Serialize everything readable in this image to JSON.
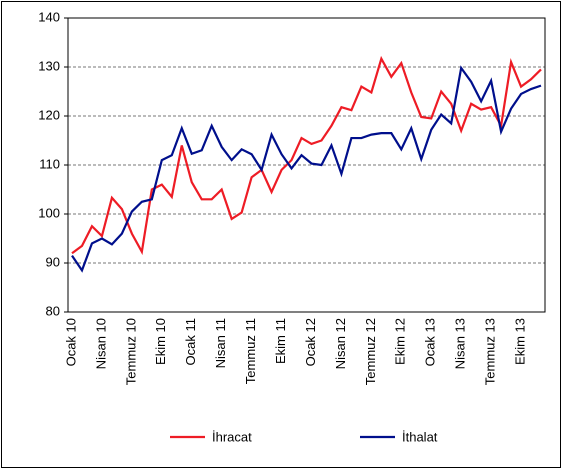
{
  "chart_data": {
    "type": "line",
    "categories": [
      "Ocak 10",
      null,
      null,
      "Nisan 10",
      null,
      null,
      "Temmuz 10",
      null,
      null,
      "Ekim 10",
      null,
      null,
      "Ocak 11",
      null,
      null,
      "Nisan 11",
      null,
      null,
      "Temmuz 11",
      null,
      null,
      "Ekim 11",
      null,
      null,
      "Ocak 12",
      null,
      null,
      "Nisan 12",
      null,
      null,
      "Temmuz 12",
      null,
      null,
      "Ekim 12",
      null,
      null,
      "Ocak 13",
      null,
      null,
      "Nisan 13",
      null,
      null,
      "Temmuz 13",
      null,
      null,
      "Ekim 13",
      null,
      null
    ],
    "series": [
      {
        "name": "İhracat",
        "color": "#ee1c25",
        "values": [
          92,
          93.5,
          97.5,
          95.5,
          103.3,
          101,
          96,
          92.3,
          105,
          106,
          103.5,
          114,
          106.5,
          103,
          103,
          105,
          99,
          100.3,
          107.5,
          109,
          104.5,
          109,
          111,
          115.5,
          114.3,
          115,
          118,
          121.8,
          121.2,
          126,
          124.8,
          131.7,
          128,
          130.8,
          124.8,
          119.8,
          119.5,
          125,
          122.5,
          117,
          122.5,
          121.3,
          121.8,
          118,
          131,
          126,
          127.5,
          129.5
        ]
      },
      {
        "name": "İthalat",
        "color": "#000f8c",
        "values": [
          91.5,
          88.5,
          94,
          95,
          93.8,
          96,
          100.5,
          102.5,
          103,
          111,
          112,
          117.5,
          112.3,
          113,
          118,
          113.7,
          111,
          113.2,
          112.2,
          109,
          116.2,
          112.2,
          109.3,
          112,
          110.3,
          110,
          114,
          108.2,
          115.5,
          115.5,
          116.2,
          116.5,
          116.5,
          113.2,
          117.5,
          111.2,
          117.2,
          120.3,
          118.5,
          129.8,
          127,
          123,
          127.2,
          116.8,
          121.5,
          124.5,
          125.5,
          126.2
        ]
      }
    ],
    "ylim": [
      80,
      140
    ],
    "yticks": [
      80,
      90,
      100,
      110,
      120,
      130,
      140
    ],
    "grid": true
  }
}
